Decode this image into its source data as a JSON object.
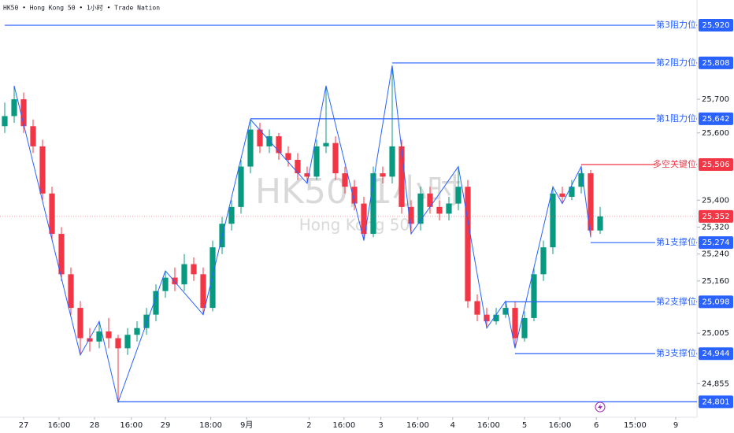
{
  "chart_data": {
    "type": "candlestick",
    "header": "HK50 • Hong Kong 50 • 1小时 • Trade Nation",
    "watermark": "HK50, 1小时",
    "watermark_subtitle": "Hong Kong 50",
    "up_color": "#089981",
    "down_color": "#f23645",
    "xlim": [
      -0.5,
      73.25
    ],
    "ylim": [
      24755,
      25995
    ],
    "xticks": [
      {
        "value": 2,
        "label": "27"
      },
      {
        "value": 5.75,
        "label": "16:00"
      },
      {
        "value": 9.5,
        "label": "28"
      },
      {
        "value": 13.4,
        "label": "16:00"
      },
      {
        "value": 17,
        "label": "29"
      },
      {
        "value": 21.8,
        "label": "18:00"
      },
      {
        "value": 25.6,
        "label": "9月"
      },
      {
        "value": 32.2,
        "label": "2"
      },
      {
        "value": 35.9,
        "label": "16:00"
      },
      {
        "value": 39.8,
        "label": "3"
      },
      {
        "value": 43.7,
        "label": "16:00"
      },
      {
        "value": 47.4,
        "label": "4"
      },
      {
        "value": 51.2,
        "label": "16:00"
      },
      {
        "value": 55,
        "label": "5"
      },
      {
        "value": 58.75,
        "label": "16:00"
      },
      {
        "value": 62.6,
        "label": "6"
      },
      {
        "value": 66.7,
        "label": "15:00"
      },
      {
        "value": 71,
        "label": "9"
      }
    ],
    "yticks": [
      {
        "value": 25700,
        "label": "25,700"
      },
      {
        "value": 25600,
        "label": "25,600"
      },
      {
        "value": 25400,
        "label": "25,400"
      },
      {
        "value": 25320,
        "label": "25,320"
      },
      {
        "value": 25240,
        "label": "25,240"
      },
      {
        "value": 25160,
        "label": "25,160"
      },
      {
        "value": 25005,
        "label": "25,005"
      },
      {
        "value": 24855,
        "label": "24,855"
      }
    ],
    "candles": [
      [
        25620,
        25690,
        25600,
        25650
      ],
      [
        25650,
        25740,
        25630,
        25700
      ],
      [
        25700,
        25720,
        25600,
        25620
      ],
      [
        25620,
        25640,
        25540,
        25560
      ],
      [
        25560,
        25580,
        25400,
        25420
      ],
      [
        25420,
        25440,
        25280,
        25300
      ],
      [
        25300,
        25320,
        25160,
        25180
      ],
      [
        25180,
        25200,
        25060,
        25080
      ],
      [
        25080,
        25100,
        24940,
        24990
      ],
      [
        24990,
        25020,
        24950,
        24980
      ],
      [
        24980,
        25040,
        24960,
        25010
      ],
      [
        25010,
        25050,
        24960,
        24990
      ],
      [
        24990,
        25000,
        24800,
        24960
      ],
      [
        24960,
        25020,
        24940,
        25000
      ],
      [
        25000,
        25040,
        24980,
        25020
      ],
      [
        25020,
        25080,
        25000,
        25060
      ],
      [
        25060,
        25150,
        25040,
        25130
      ],
      [
        25130,
        25190,
        25110,
        25170
      ],
      [
        25170,
        25200,
        25130,
        25150
      ],
      [
        25150,
        25240,
        25130,
        25210
      ],
      [
        25210,
        25230,
        25160,
        25180
      ],
      [
        25180,
        25200,
        25060,
        25080
      ],
      [
        25080,
        25280,
        25070,
        25260
      ],
      [
        25260,
        25350,
        25240,
        25330
      ],
      [
        25330,
        25400,
        25310,
        25380
      ],
      [
        25380,
        25520,
        25360,
        25500
      ],
      [
        25500,
        25640,
        25480,
        25610
      ],
      [
        25610,
        25630,
        25540,
        25560
      ],
      [
        25560,
        25610,
        25540,
        25590
      ],
      [
        25590,
        25600,
        25520,
        25540
      ],
      [
        25540,
        25560,
        25500,
        25520
      ],
      [
        25520,
        25540,
        25460,
        25480
      ],
      [
        25480,
        25500,
        25450,
        25470
      ],
      [
        25470,
        25580,
        25460,
        25560
      ],
      [
        25560,
        25740,
        25540,
        25570
      ],
      [
        25570,
        25590,
        25460,
        25480
      ],
      [
        25480,
        25500,
        25420,
        25440
      ],
      [
        25440,
        25460,
        25370,
        25390
      ],
      [
        25390,
        25410,
        25280,
        25300
      ],
      [
        25300,
        25500,
        25290,
        25480
      ],
      [
        25480,
        25500,
        25450,
        25470
      ],
      [
        25470,
        25800,
        25450,
        25560
      ],
      [
        25560,
        25580,
        25360,
        25380
      ],
      [
        25380,
        25400,
        25300,
        25330
      ],
      [
        25330,
        25440,
        25310,
        25420
      ],
      [
        25420,
        25440,
        25360,
        25380
      ],
      [
        25380,
        25400,
        25340,
        25360
      ],
      [
        25360,
        25410,
        25340,
        25390
      ],
      [
        25390,
        25500,
        25370,
        25440
      ],
      [
        25440,
        25460,
        25080,
        25100
      ],
      [
        25100,
        25120,
        25040,
        25060
      ],
      [
        25060,
        25080,
        25020,
        25040
      ],
      [
        25040,
        25080,
        25030,
        25060
      ],
      [
        25060,
        25100,
        25050,
        25080
      ],
      [
        25080,
        25100,
        24960,
        24990
      ],
      [
        24990,
        25070,
        24980,
        25050
      ],
      [
        25050,
        25200,
        25040,
        25180
      ],
      [
        25180,
        25280,
        25160,
        25260
      ],
      [
        25260,
        25440,
        25240,
        25420
      ],
      [
        25420,
        25440,
        25390,
        25410
      ],
      [
        25410,
        25460,
        25400,
        25440
      ],
      [
        25440,
        25500,
        25420,
        25480
      ],
      [
        25480,
        25490,
        25290,
        25310
      ],
      [
        25310,
        25380,
        25300,
        25352
      ]
    ],
    "zigzag": {
      "color": "#2962ff",
      "x": [
        1,
        8,
        10,
        12,
        17,
        21,
        26,
        32,
        34,
        38,
        41,
        43,
        48,
        51,
        53,
        54,
        58,
        59,
        61,
        62
      ],
      "values": [
        25740,
        24940,
        25040,
        24800,
        25190,
        25060,
        25640,
        25450,
        25740,
        25280,
        25800,
        25300,
        25500,
        25020,
        25100,
        24960,
        25440,
        25390,
        25500,
        25290
      ]
    },
    "levels": [
      {
        "name": "第3阻力位",
        "start": 0,
        "value": 25920,
        "label": "25,920",
        "color": "#2962ff"
      },
      {
        "name": "第2阻力位",
        "start": 41,
        "value": 25808,
        "label": "25,808",
        "color": "#2962ff"
      },
      {
        "name": "第1阻力位",
        "start": 26,
        "value": 25642,
        "label": "25,642",
        "color": "#2962ff"
      },
      {
        "name": "多空关键位",
        "start": 61,
        "value": 25506,
        "label": "25,506",
        "color": "#f23645"
      },
      {
        "name": "第1支撑位",
        "start": 62,
        "value": 25274,
        "label": "25,274",
        "color": "#2962ff"
      },
      {
        "name": "第2支撑位",
        "start": 53,
        "value": 25098,
        "label": "25,098",
        "color": "#2962ff"
      },
      {
        "name": "第3支撑位",
        "start": 54,
        "value": 24944,
        "label": "24,944",
        "color": "#2962ff"
      },
      {
        "start": 12,
        "value": 24801,
        "label": "24,801",
        "color": "#2962ff"
      }
    ],
    "last_price": {
      "value": 25352,
      "label": "25,352",
      "color": "#f23645"
    }
  }
}
